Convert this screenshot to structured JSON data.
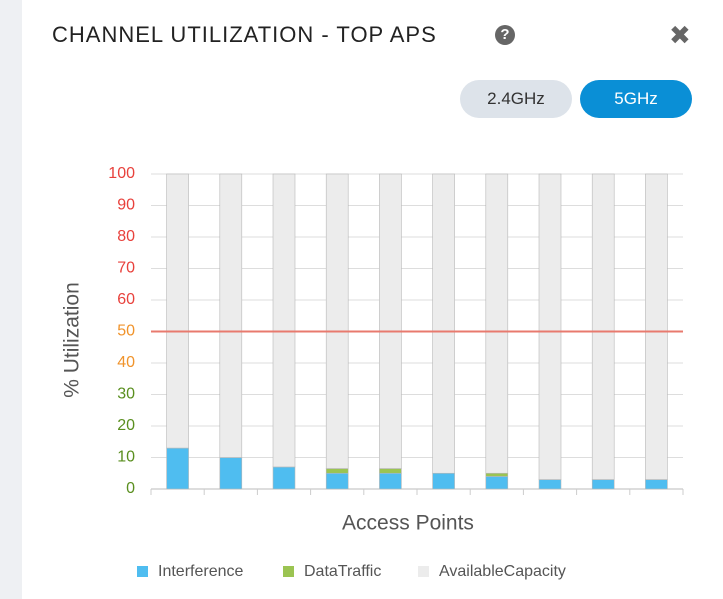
{
  "header": {
    "title": "CHANNEL UTILIZATION - TOP APS",
    "help": "?",
    "close": "✖"
  },
  "buttons": [
    "2.4GHz",
    "5GHz"
  ],
  "chart_data": {
    "type": "stacked-bar",
    "xlabel": "Access Points",
    "ylabel": "% Utilization",
    "categories": [
      null,
      null,
      null,
      null,
      null,
      null,
      null,
      null,
      null,
      null
    ],
    "series": [
      {
        "name": "Interference",
        "color": "#4fbdf0",
        "values": [
          13,
          10,
          7,
          5,
          5,
          5,
          4,
          3,
          3,
          3
        ]
      },
      {
        "name": "DataTraffic",
        "color": "#9bc452",
        "values": [
          0,
          0,
          0,
          1.5,
          1.5,
          0,
          1,
          0,
          0,
          0
        ]
      },
      {
        "name": "AvailableCapacity",
        "color": "#ececec",
        "values": [
          87,
          90,
          93,
          93.5,
          93.5,
          95,
          95,
          97,
          97,
          97
        ]
      }
    ],
    "ylim": [
      0,
      100
    ],
    "yticks": [
      0,
      10,
      20,
      30,
      40,
      50,
      60,
      70,
      80,
      90,
      100
    ],
    "ytick_colors": [
      "#5a8f1f",
      "#5a8f1f",
      "#5a8f1f",
      "#5a8f1f",
      "#f0932b",
      "#f0932b",
      "#e8413c",
      "#e8413c",
      "#e8413c",
      "#e8413c",
      "#e8413c"
    ],
    "threshold": 50,
    "threshold_color": "#e87a6e",
    "grid": true
  }
}
